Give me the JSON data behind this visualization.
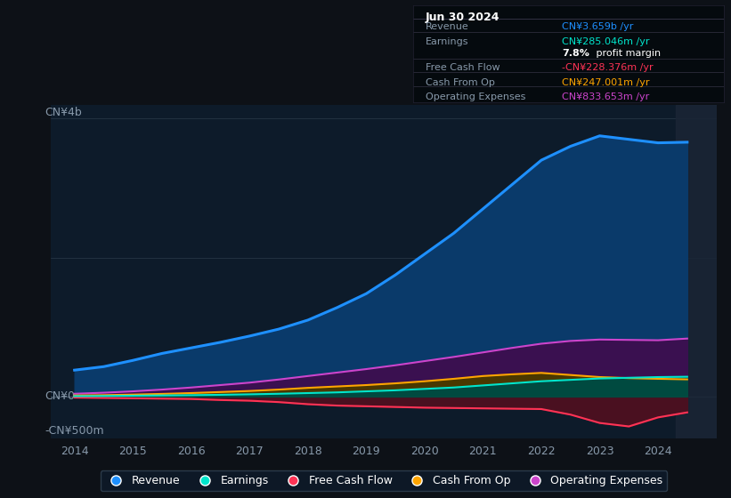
{
  "background_color": "#0d1117",
  "plot_bg_color": "#0d1b2a",
  "years": [
    2014.0,
    2014.5,
    2015.0,
    2015.5,
    2016.0,
    2016.5,
    2017.0,
    2017.5,
    2018.0,
    2018.5,
    2019.0,
    2019.5,
    2020.0,
    2020.5,
    2021.0,
    2021.5,
    2022.0,
    2022.5,
    2023.0,
    2023.5,
    2024.0,
    2024.5
  ],
  "revenue": [
    380,
    430,
    520,
    620,
    700,
    780,
    870,
    970,
    1100,
    1280,
    1480,
    1750,
    2050,
    2350,
    2700,
    3050,
    3400,
    3600,
    3750,
    3700,
    3650,
    3659
  ],
  "earnings": [
    5,
    8,
    12,
    16,
    20,
    25,
    32,
    40,
    50,
    60,
    75,
    90,
    110,
    130,
    160,
    190,
    220,
    240,
    260,
    270,
    280,
    285
  ],
  "free_cash_flow": [
    -15,
    -20,
    -25,
    -30,
    -35,
    -50,
    -60,
    -80,
    -110,
    -130,
    -140,
    -150,
    -160,
    -165,
    -170,
    -175,
    -180,
    -260,
    -380,
    -430,
    -300,
    -228
  ],
  "cash_from_op": [
    15,
    20,
    28,
    38,
    50,
    65,
    80,
    100,
    125,
    145,
    165,
    190,
    220,
    255,
    295,
    320,
    340,
    310,
    280,
    265,
    255,
    247
  ],
  "operating_expenses": [
    40,
    55,
    75,
    100,
    130,
    165,
    200,
    245,
    295,
    345,
    395,
    450,
    510,
    570,
    635,
    700,
    760,
    800,
    820,
    815,
    810,
    834
  ],
  "ylabel_top": "CN¥4b",
  "ylabel_zero": "CN¥0",
  "ylabel_neg": "-CN¥500m",
  "colors": {
    "revenue": "#1e90ff",
    "earnings": "#00e5cc",
    "free_cash_flow": "#ff3355",
    "cash_from_op": "#ffa500",
    "operating_expenses": "#cc44cc"
  },
  "fill_colors": {
    "revenue": "#0a3a6a",
    "earnings": "#004a40",
    "free_cash_flow": "#4a1020",
    "cash_from_op": "#4a3800",
    "operating_expenses": "#3a1050"
  },
  "ylim": [
    -600,
    4200
  ],
  "xlim": [
    2013.6,
    2025.0
  ],
  "x_ticks": [
    2014,
    2015,
    2016,
    2017,
    2018,
    2019,
    2020,
    2021,
    2022,
    2023,
    2024
  ],
  "legend": [
    {
      "label": "Revenue",
      "color": "#1e90ff"
    },
    {
      "label": "Earnings",
      "color": "#00e5cc"
    },
    {
      "label": "Free Cash Flow",
      "color": "#ff3355"
    },
    {
      "label": "Cash From Op",
      "color": "#ffa500"
    },
    {
      "label": "Operating Expenses",
      "color": "#cc44cc"
    }
  ],
  "infobox": {
    "date": "Jun 30 2024",
    "rows": [
      {
        "label": "Revenue",
        "value": "CN¥3.659b /yr",
        "value_color": "#1e90ff"
      },
      {
        "label": "Earnings",
        "value": "CN¥285.046m /yr",
        "value_color": "#00e5cc"
      },
      {
        "label": "",
        "value": "7.8% profit margin",
        "value_color": "#ffffff",
        "bold": "7.8%"
      },
      {
        "label": "Free Cash Flow",
        "value": "-CN¥228.376m /yr",
        "value_color": "#ff3355"
      },
      {
        "label": "Cash From Op",
        "value": "CN¥247.001m /yr",
        "value_color": "#ffa500"
      },
      {
        "label": "Operating Expenses",
        "value": "CN¥833.653m /yr",
        "value_color": "#cc44cc"
      }
    ]
  }
}
